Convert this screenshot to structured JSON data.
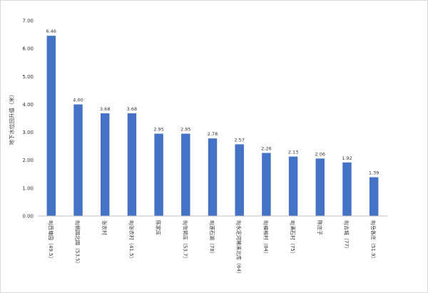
{
  "chart_data": {
    "type": "bar",
    "title": "",
    "xlabel": "",
    "ylabel": "地下水位回升值（米）",
    "ylim": [
      0,
      7
    ],
    "yticks": [
      "0.00",
      "1.00",
      "2.00",
      "3.00",
      "4.00",
      "5.00",
      "6.00",
      "7.00"
    ],
    "grid": false,
    "legend": "none",
    "bar_color": "#4472C4",
    "categories": [
      "BJ西塘园（49.5）",
      "BJ桃园北园（53.5）",
      "张农村",
      "BJ张农村（41.5）",
      "陈家庄",
      "BJ张郭庄（53.7）",
      "BJ莲石湖（78）",
      "BJ永定河稀溪北库（64）",
      "BJ福裕村（84）",
      "BJ满石村（75）",
      "陈庄子",
      "BJ古城（77）",
      "BJ岳各庄（51.9）"
    ],
    "values": [
      6.46,
      4.0,
      3.68,
      3.68,
      2.95,
      2.95,
      2.78,
      2.57,
      2.26,
      2.13,
      2.06,
      1.92,
      1.39
    ],
    "value_labels": [
      "6.46",
      "4.00",
      "3.68",
      "3.68",
      "2.95",
      "2.95",
      "2.78",
      "2.57",
      "2.26",
      "2.13",
      "2.06",
      "1.92",
      "1.39"
    ]
  }
}
